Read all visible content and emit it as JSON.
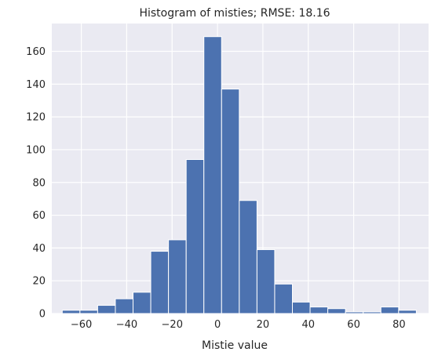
{
  "chart_data": {
    "type": "bar",
    "title": "Histogram of misties; RMSE: 18.16",
    "xlabel": "Mistie value",
    "ylabel": "",
    "xlim": [
      -73,
      93
    ],
    "ylim": [
      0,
      177
    ],
    "xticks": [
      -60,
      -40,
      -20,
      0,
      20,
      40,
      60,
      80
    ],
    "xtick_labels": [
      "−60",
      "−40",
      "−20",
      "0",
      "20",
      "40",
      "60",
      "80"
    ],
    "yticks": [
      0,
      20,
      40,
      60,
      80,
      100,
      120,
      140,
      160
    ],
    "ytick_labels": [
      "0",
      "20",
      "40",
      "60",
      "80",
      "100",
      "120",
      "140",
      "160"
    ],
    "grid": true,
    "bin_edges": [
      -68.4,
      -60.6,
      -52.8,
      -45.0,
      -37.2,
      -29.4,
      -21.6,
      -13.8,
      -6.0,
      1.8,
      9.6,
      17.4,
      25.2,
      33.0,
      40.8,
      48.6,
      56.4,
      64.2,
      72.0,
      79.8,
      87.6
    ],
    "values": [
      2,
      2,
      5,
      9,
      13,
      38,
      45,
      94,
      169,
      137,
      69,
      39,
      18,
      7,
      4,
      3,
      1,
      1,
      4,
      2
    ],
    "colors": {
      "bar": "#4c72b0",
      "bar_edge": "#ffffff",
      "plot_bg": "#eaeaf2",
      "grid": "#ffffff",
      "text": "#262626"
    }
  }
}
